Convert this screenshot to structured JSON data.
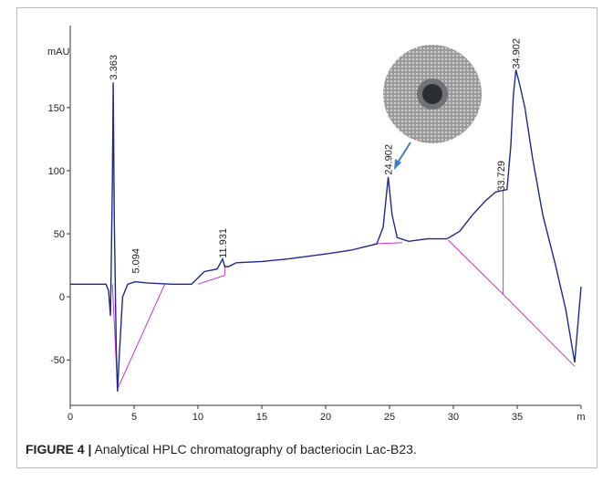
{
  "chart_data": {
    "type": "line",
    "y_label": "mAU",
    "xlim": [
      0,
      40
    ],
    "ylim": [
      -86,
      215
    ],
    "xticks": [
      0,
      5,
      10,
      15,
      20,
      25,
      30,
      35,
      {
        "value": 40,
        "label": "m"
      }
    ],
    "yticks": [
      -50,
      0,
      50,
      100,
      150
    ],
    "grid": false,
    "peak_labels": [
      3.363,
      5.094,
      11.931,
      24.902,
      33.729,
      34.902
    ],
    "series": [
      {
        "color": "#1c2a8c",
        "x": [
          0,
          2.8,
          3.0,
          3.15,
          3.3,
          3.363,
          3.45,
          3.6,
          3.7,
          3.85,
          4.1,
          4.5,
          5.094,
          6,
          8,
          9.5,
          10.5,
          11.5,
          11.931,
          12.1,
          12.4,
          13,
          15,
          17,
          20,
          22,
          24,
          24.5,
          24.902,
          25.2,
          25.6,
          26.5,
          28,
          29.5,
          30.5,
          31.5,
          32.5,
          33.3,
          33.729,
          34.2,
          34.5,
          34.7,
          34.902,
          35.2,
          35.6,
          36.2,
          37,
          38,
          38.8,
          39.5,
          40
        ],
        "y": [
          10,
          10,
          5,
          -15,
          90,
          170,
          60,
          -40,
          -75,
          -45,
          0,
          10,
          12,
          11,
          10,
          10,
          20,
          22,
          30,
          24,
          24,
          27,
          28,
          30,
          34,
          37,
          42,
          55,
          95,
          65,
          47,
          44,
          46,
          46,
          52,
          65,
          76,
          83,
          84,
          85,
          120,
          160,
          180,
          168,
          150,
          110,
          65,
          25,
          -10,
          -52,
          8
        ]
      },
      {
        "color": "#d62fd0",
        "x": [
          3.3,
          3.7,
          7.4,
          null,
          10,
          12.1,
          null,
          12.1,
          12.1,
          null,
          23.8,
          26,
          null,
          29.6,
          33.9,
          39.5,
          null,
          33.9,
          33.9
        ],
        "y": [
          10,
          -73,
          10,
          null,
          10,
          17,
          null,
          17,
          25,
          null,
          42,
          43,
          null,
          45,
          2,
          -55,
          null,
          2,
          84
        ]
      }
    ]
  },
  "caption": {
    "label": "FIGURE 4 |",
    "text": "Analytical HPLC chromatography of bacteriocin Lac-B23."
  }
}
